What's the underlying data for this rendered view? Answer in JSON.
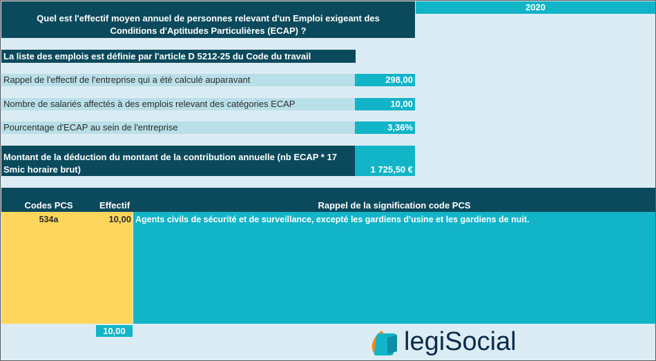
{
  "header": {
    "question": "Quel est l'effectif moyen annuel de personnes relevant d'un Emploi exigeant des Conditions d'Aptitudes Particulières (ECAP) ?",
    "year": "2020"
  },
  "info": {
    "article_note": "La liste des emplois est définie par l'article D 5212-25 du Code du travail"
  },
  "rows": [
    {
      "label": "Rappel de l'effectif de l'entreprise qui a été calculé auparavant",
      "value": "298,00"
    },
    {
      "label": "Nombre de salariés affectés à des emplois relevant des catégories ECAP",
      "value": "10,00"
    },
    {
      "label": "Pourcentage d'ECAP au sein de l'entreprise",
      "value": "3,36%"
    }
  ],
  "deduction": {
    "label": "Montant de la déduction du montant de la contribution annuelle (nb ECAP * 17 Smic horaire brut)",
    "value": "1 725,50 €"
  },
  "table": {
    "headers": {
      "codes": "Codes PCS",
      "effectif": "Effectif",
      "meaning": "Rappel de la signification code PCS"
    },
    "rows": [
      {
        "code": "534a",
        "effectif": "10,00",
        "meaning": "Agents civils de sécurité et de surveillance, excepté les gardiens d'usine et les gardiens de nuit."
      }
    ],
    "total": "10,00"
  },
  "logo": {
    "text": "legiSocial",
    "colors": {
      "orange": "#f08c1e",
      "teal": "#12b4c8",
      "navy": "#0b2b4a"
    }
  }
}
